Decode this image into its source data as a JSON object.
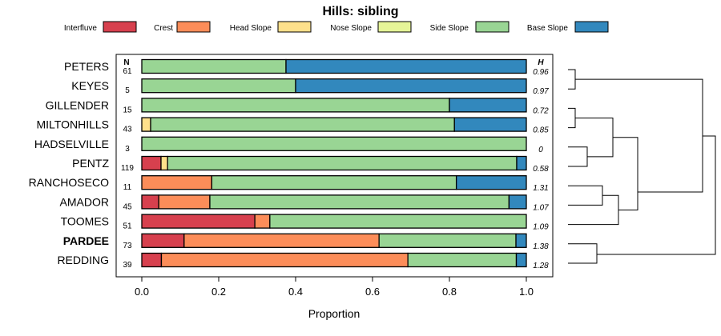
{
  "chart_data": {
    "type": "bar",
    "stacked": true,
    "orientation": "horizontal",
    "title": "Hills: sibling",
    "xlabel": "Proportion",
    "xlim": [
      0,
      1
    ],
    "xticks": [
      "0.0",
      "0.2",
      "0.4",
      "0.6",
      "0.8",
      "1.0"
    ],
    "n_header": "N",
    "h_header": "H",
    "legend": [
      {
        "name": "Interfluve",
        "color": "#d7404e"
      },
      {
        "name": "Crest",
        "color": "#fc8d59"
      },
      {
        "name": "Head Slope",
        "color": "#fee08b"
      },
      {
        "name": "Nose Slope",
        "color": "#e6f598"
      },
      {
        "name": "Side Slope",
        "color": "#99d594"
      },
      {
        "name": "Base Slope",
        "color": "#3288bd"
      }
    ],
    "rows": [
      {
        "name": "PETERS",
        "bold": false,
        "n": "61",
        "h": "0.96",
        "values": [
          0,
          0,
          0,
          0,
          0.375,
          0.625
        ]
      },
      {
        "name": "KEYES",
        "bold": false,
        "n": "5",
        "h": "0.97",
        "values": [
          0,
          0,
          0,
          0,
          0.4,
          0.6
        ]
      },
      {
        "name": "GILLENDER",
        "bold": false,
        "n": "15",
        "h": "0.72",
        "values": [
          0,
          0,
          0,
          0,
          0.8,
          0.2
        ]
      },
      {
        "name": "MILTONHILLS",
        "bold": false,
        "n": "43",
        "h": "0.85",
        "values": [
          0,
          0,
          0.023,
          0,
          0.79,
          0.187
        ]
      },
      {
        "name": "HADSELVILLE",
        "bold": false,
        "n": "3",
        "h": "0",
        "values": [
          0,
          0,
          0,
          0,
          1.0,
          0
        ]
      },
      {
        "name": "PENTZ",
        "bold": false,
        "n": "119",
        "h": "0.58",
        "values": [
          0.05,
          0,
          0.017,
          0,
          0.908,
          0.025
        ]
      },
      {
        "name": "RANCHOSECO",
        "bold": false,
        "n": "11",
        "h": "1.31",
        "values": [
          0,
          0.182,
          0,
          0,
          0.636,
          0.182
        ]
      },
      {
        "name": "AMADOR",
        "bold": false,
        "n": "45",
        "h": "1.07",
        "values": [
          0.044,
          0.133,
          0,
          0,
          0.778,
          0.045
        ]
      },
      {
        "name": "TOOMES",
        "bold": false,
        "n": "51",
        "h": "1.09",
        "values": [
          0.294,
          0.039,
          0,
          0,
          0.667,
          0
        ]
      },
      {
        "name": "PARDEE",
        "bold": true,
        "n": "73",
        "h": "1.38",
        "values": [
          0.11,
          0.507,
          0,
          0,
          0.356,
          0.027
        ]
      },
      {
        "name": "REDDING",
        "bold": false,
        "n": "39",
        "h": "1.28",
        "values": [
          0.051,
          0.641,
          0,
          0,
          0.282,
          0.026
        ]
      }
    ],
    "dendrogram": {
      "description": "hierarchical clustering tree of the rows",
      "merges": [
        {
          "a": "PETERS",
          "b": "KEYES",
          "height": 0.05
        },
        {
          "a": "GILLENDER",
          "b": "MILTONHILLS",
          "height": 0.05
        },
        {
          "a": "HADSELVILLE",
          "b": "PENTZ",
          "height": 0.15
        },
        {
          "a": "RANCHOSECO",
          "b": "AMADOR",
          "height": 0.3
        },
        {
          "a": "PARDEE",
          "b": "REDDING",
          "height": 0.25
        },
        {
          "a": "GILLENDER+MILTONHILLS",
          "b": "HADSELVILLE+PENTZ",
          "height": 0.4
        },
        {
          "a": "RANCHOSECO+AMADOR",
          "b": "TOOMES",
          "height": 0.4
        },
        {
          "a": "GILLENDER+MILTONHILLS+HADSELVILLE+PENTZ",
          "b": "RANCHOSECO+AMADOR+TOOMES",
          "height": 0.6
        },
        {
          "a": "PETERS+KEYES",
          "b": "GILLENDER+MILTONHILLS+HADSELVILLE+PENTZ+RANCHOSECO+AMADOR+TOOMES",
          "height": 1.0
        },
        {
          "a": "PETERS+...+TOOMES",
          "b": "PARDEE+REDDING",
          "height": 1.1
        }
      ]
    }
  }
}
